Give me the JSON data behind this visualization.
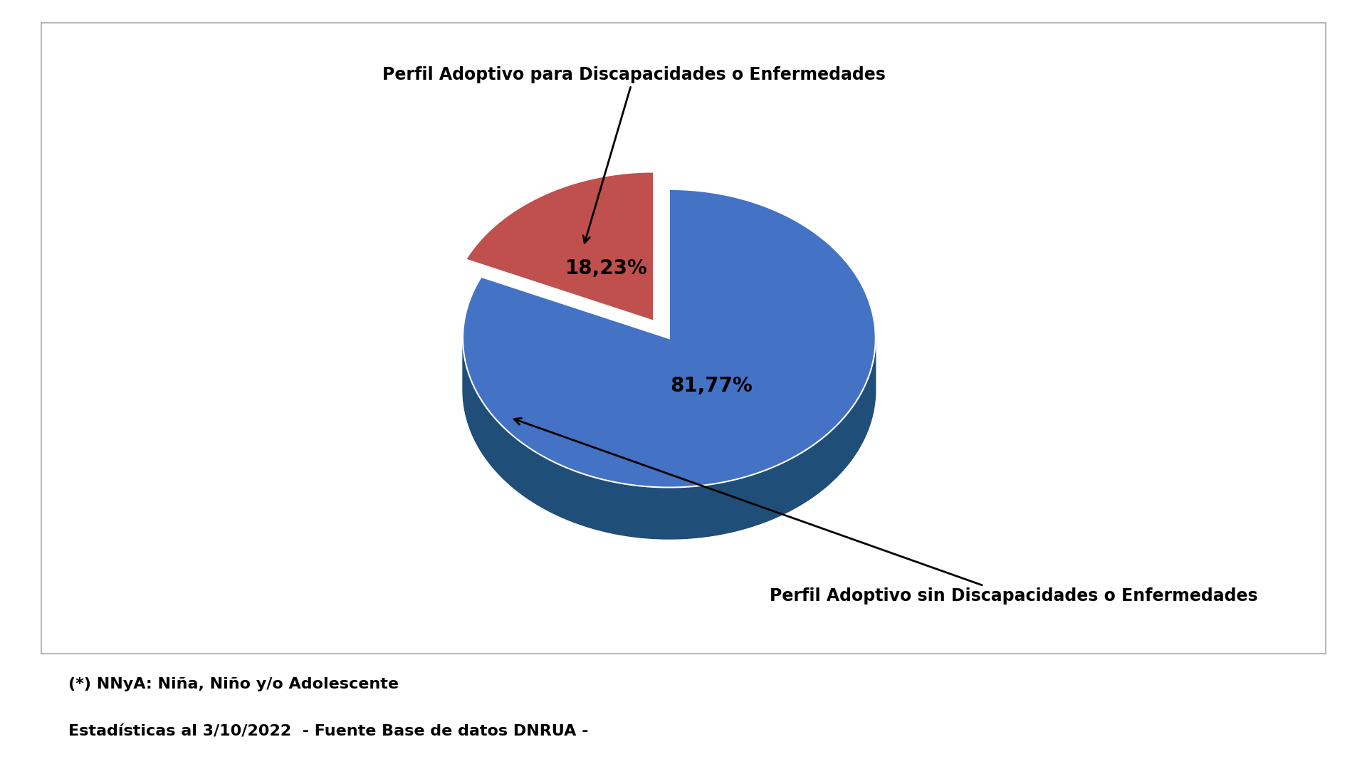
{
  "values": [
    81.77,
    18.23
  ],
  "labels": [
    "81,77%",
    "18,23%"
  ],
  "color_blue_top": "#4472C4",
  "color_blue_side": "#1F4E79",
  "color_red_top": "#C0504D",
  "color_red_side": "#7B2020",
  "annotation_with_disability": "Perfil Adoptivo para Discapacidades o Enfermedades",
  "annotation_without_disability": "Perfil Adoptivo sin Discapacidades o Enfermedades",
  "footer_line1": "(*) NNyA: Niña, Niño y/o Adolescente",
  "footer_line2": "Estadísticas al 3/10/2022  - Fuente Base de datos DNRUA -",
  "background_color": "#FFFFFF",
  "label_fontsize": 20,
  "annotation_fontsize": 17,
  "footer_fontsize": 16
}
